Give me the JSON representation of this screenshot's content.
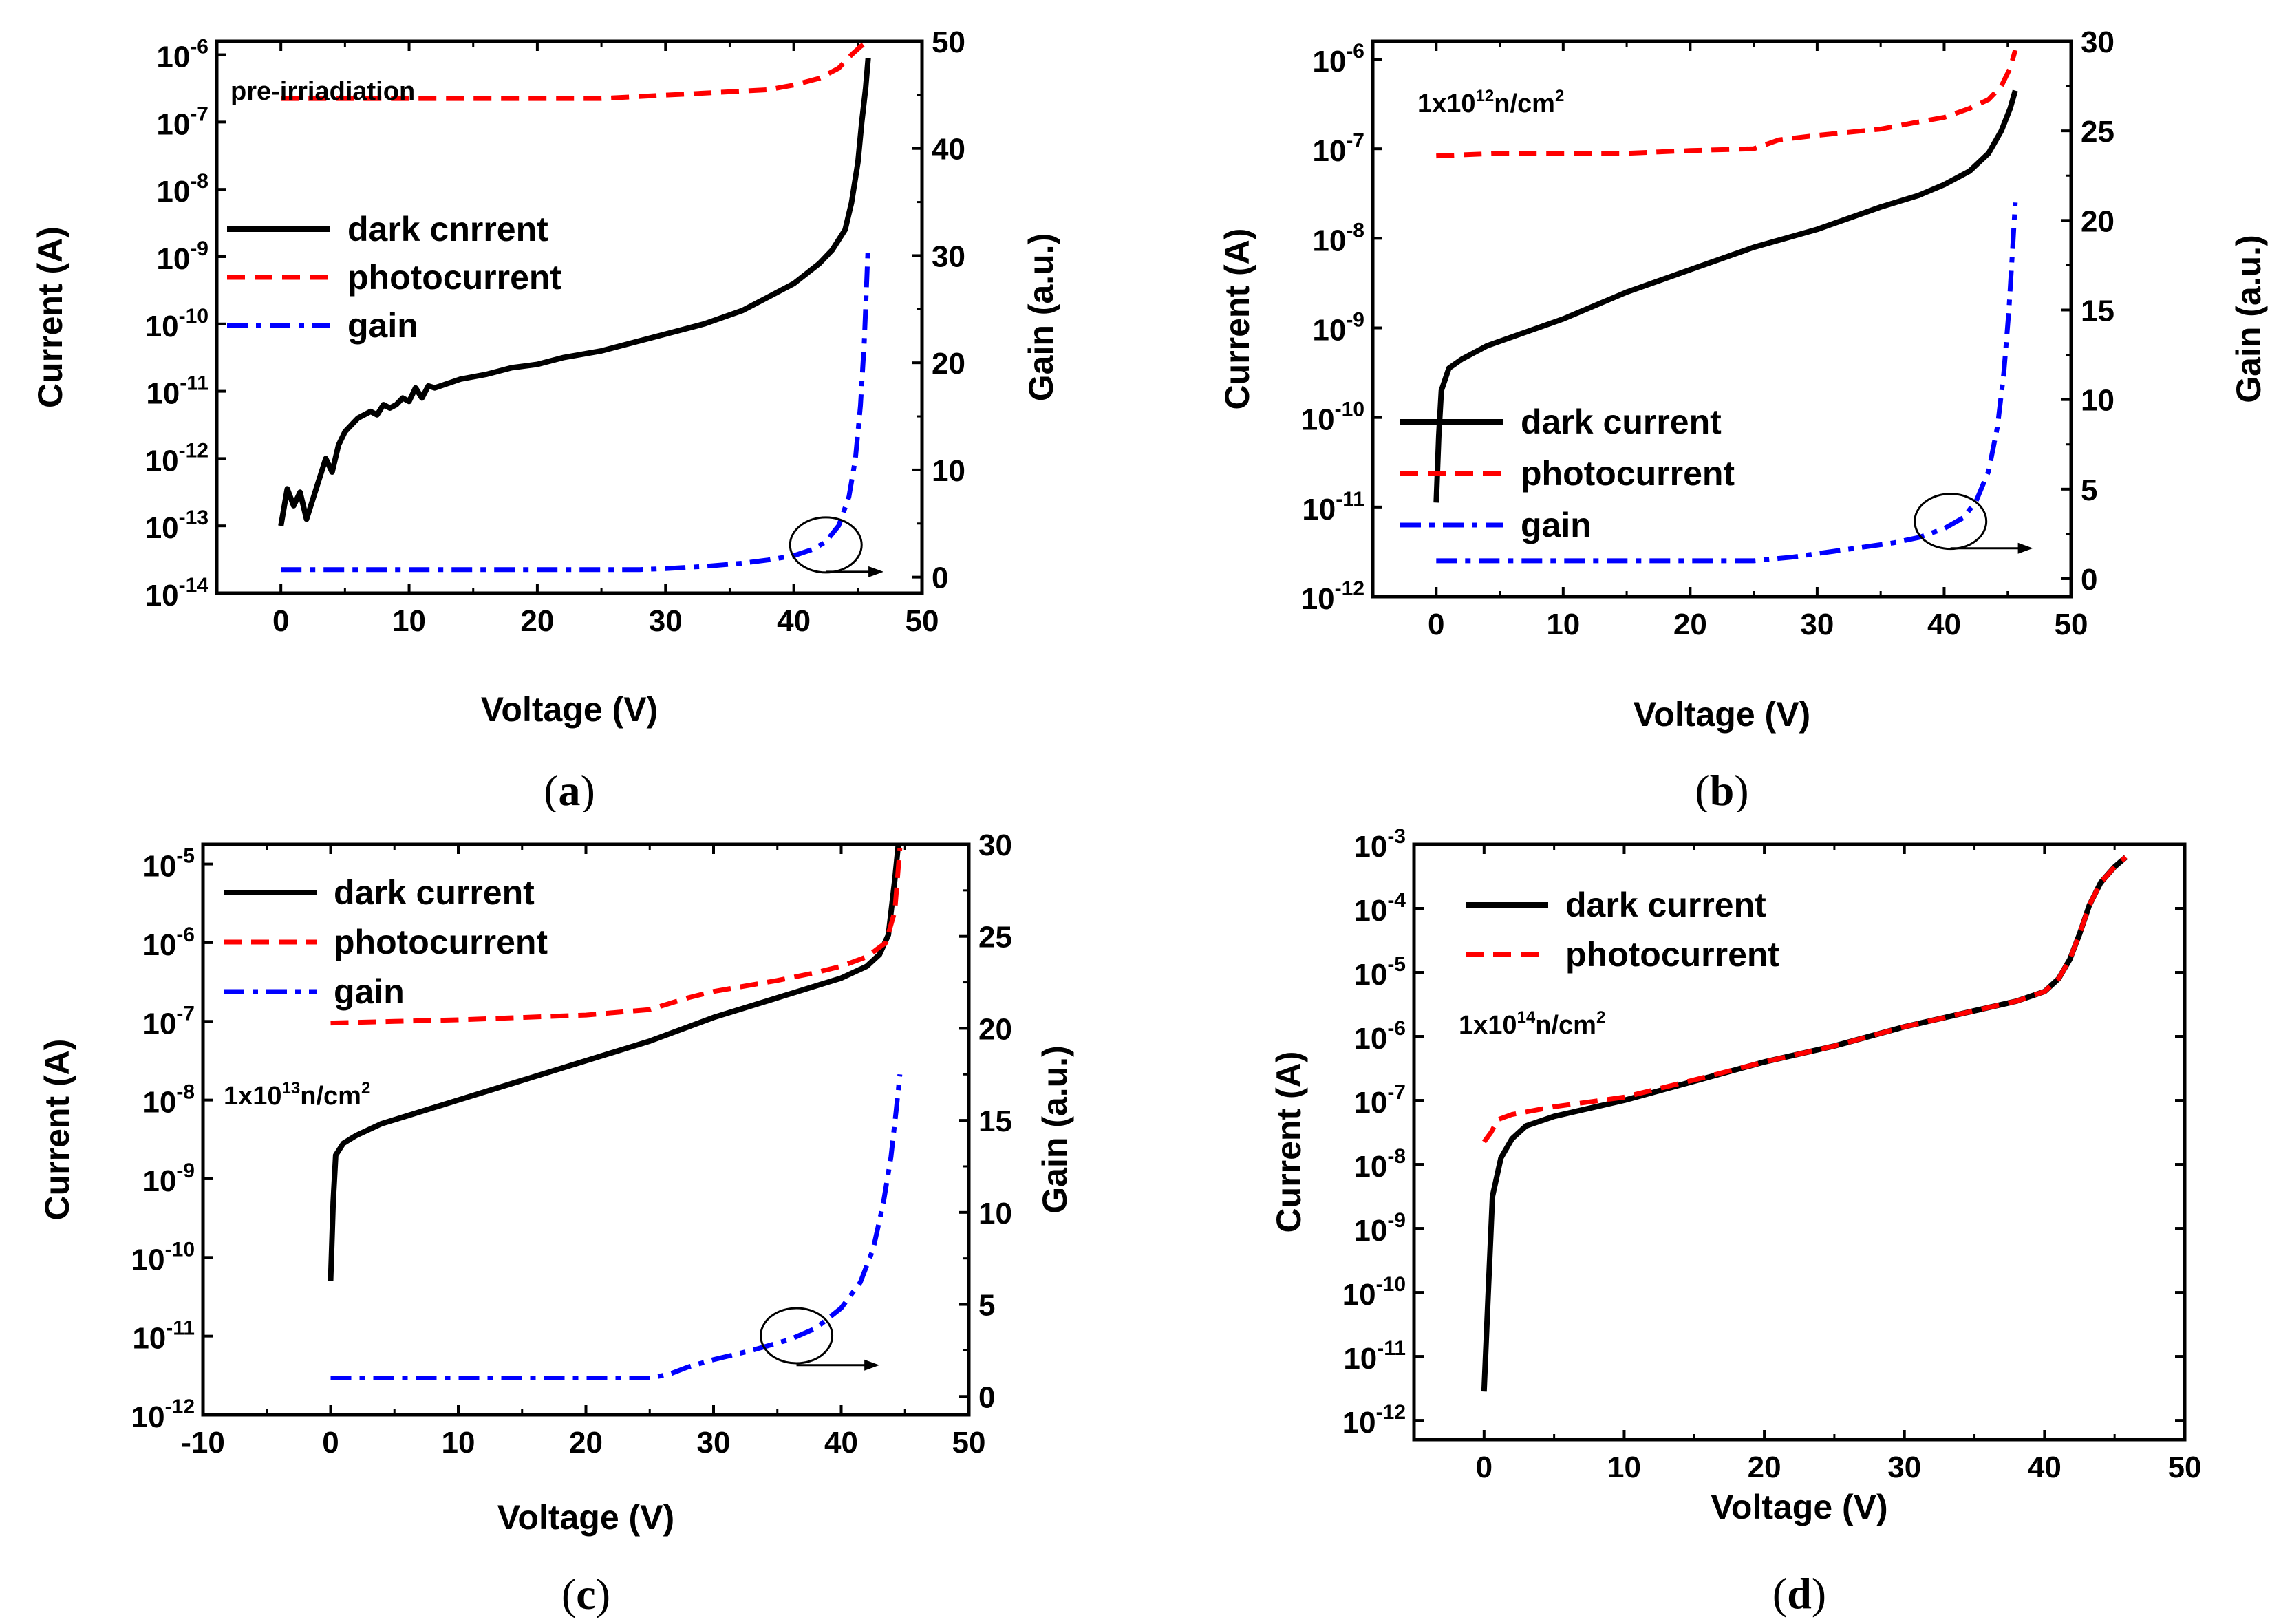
{
  "chart_data": [
    {
      "id": "a",
      "type": "line",
      "caption": "a",
      "annotation": {
        "text": "pre-irriadiation"
      },
      "xlabel": "Voltage (V)",
      "ylabel": "Current (A)",
      "y2label": "Gain (a.u.)",
      "xlim": [
        -5,
        50
      ],
      "xticks": [
        0,
        10,
        20,
        30,
        40,
        50
      ],
      "ylim_log10": [
        -14,
        -5.8
      ],
      "yticks_exp": [
        -14,
        -13,
        -12,
        -11,
        -10,
        -9,
        -8,
        -7,
        -6
      ],
      "y2lim": [
        -1.5,
        50
      ],
      "y2ticks": [
        0,
        10,
        20,
        30,
        40,
        50
      ],
      "legend": [
        {
          "series": "dark",
          "label": "dark cnrrent"
        },
        {
          "series": "photo",
          "label": "photocurrent"
        },
        {
          "series": "gain",
          "label": "gain"
        }
      ],
      "series": [
        {
          "name": "dark",
          "axis": "left",
          "color": "#000000",
          "x": [
            0,
            0.5,
            1,
            1.5,
            2,
            2.5,
            3,
            3.5,
            4,
            4.5,
            5,
            5.5,
            6,
            6.5,
            7,
            7.5,
            8,
            8.5,
            9,
            9.5,
            10,
            10.5,
            11,
            11.5,
            12,
            14,
            16,
            18,
            20,
            22,
            25,
            28,
            30,
            33,
            36,
            38,
            40,
            42,
            43,
            44,
            44.5,
            45,
            45.3,
            45.6,
            45.8
          ],
          "log10y": [
            -13.0,
            -12.45,
            -12.7,
            -12.5,
            -12.9,
            -12.6,
            -12.3,
            -12.0,
            -12.2,
            -11.8,
            -11.6,
            -11.5,
            -11.4,
            -11.35,
            -11.3,
            -11.35,
            -11.2,
            -11.25,
            -11.2,
            -11.1,
            -11.15,
            -10.95,
            -11.1,
            -10.92,
            -10.95,
            -10.82,
            -10.75,
            -10.65,
            -10.6,
            -10.5,
            -10.4,
            -10.25,
            -10.15,
            -10.0,
            -9.8,
            -9.6,
            -9.4,
            -9.1,
            -8.9,
            -8.6,
            -8.2,
            -7.6,
            -7.0,
            -6.5,
            -6.05
          ]
        },
        {
          "name": "photo",
          "axis": "left",
          "color": "#ff0000",
          "x": [
            0,
            5,
            10,
            15,
            20,
            25,
            30,
            35,
            38,
            40,
            42,
            43.5,
            44.5,
            45.2,
            45.8
          ],
          "log10y": [
            -6.65,
            -6.65,
            -6.65,
            -6.65,
            -6.65,
            -6.65,
            -6.6,
            -6.55,
            -6.52,
            -6.45,
            -6.35,
            -6.2,
            -6.0,
            -5.88,
            -5.8
          ]
        },
        {
          "name": "gain",
          "axis": "right",
          "color": "#0000ff",
          "x": [
            0,
            5,
            10,
            15,
            20,
            25,
            28,
            30,
            33,
            36,
            38,
            40,
            41.5,
            42.5,
            43.5,
            44.3,
            44.8,
            45.2,
            45.5,
            45.8
          ],
          "y": [
            0.7,
            0.7,
            0.7,
            0.7,
            0.7,
            0.7,
            0.7,
            0.8,
            1.0,
            1.3,
            1.6,
            2.0,
            2.6,
            3.3,
            4.8,
            7.5,
            11,
            16,
            22,
            31
          ]
        }
      ],
      "circle_marker": {
        "x": 42.5,
        "y2": 3.0
      },
      "arrow": {
        "x_from": 42.5,
        "x_to": 47,
        "y2": 0.5
      }
    },
    {
      "id": "b",
      "type": "line",
      "caption": "b",
      "annotation": {
        "pre": "1x10",
        "sup1": "12",
        "mid": "n/cm",
        "sup2": "2"
      },
      "xlabel": "Voltage (V)",
      "ylabel": "Current (A)",
      "y2label": "Gain (a.u.)",
      "xlim": [
        -5,
        50
      ],
      "xticks": [
        0,
        10,
        20,
        30,
        40,
        50
      ],
      "ylim_log10": [
        -12,
        -5.8
      ],
      "yticks_exp": [
        -12,
        -11,
        -10,
        -9,
        -8,
        -7,
        -6
      ],
      "y2lim": [
        -1,
        30
      ],
      "y2ticks": [
        0,
        5,
        10,
        15,
        20,
        25,
        30
      ],
      "legend": [
        {
          "series": "dark",
          "label": "dark current"
        },
        {
          "series": "photo",
          "label": "photocurrent"
        },
        {
          "series": "gain",
          "label": "gain"
        }
      ],
      "series": [
        {
          "name": "dark",
          "axis": "left",
          "color": "#000000",
          "x": [
            0,
            0.2,
            0.4,
            1,
            2,
            4,
            6,
            10,
            15,
            20,
            25,
            30,
            35,
            38,
            40,
            42,
            43.5,
            44.5,
            45.2,
            45.6
          ],
          "log10y": [
            -10.95,
            -10.2,
            -9.7,
            -9.45,
            -9.35,
            -9.2,
            -9.1,
            -8.9,
            -8.6,
            -8.35,
            -8.1,
            -7.9,
            -7.65,
            -7.52,
            -7.4,
            -7.25,
            -7.05,
            -6.8,
            -6.55,
            -6.35
          ]
        },
        {
          "name": "photo",
          "axis": "left",
          "color": "#ff0000",
          "x": [
            0,
            5,
            10,
            15,
            20,
            25,
            27,
            30,
            35,
            38,
            40,
            42,
            43.5,
            44.5,
            45.2,
            45.6
          ],
          "log10y": [
            -7.08,
            -7.05,
            -7.05,
            -7.05,
            -7.02,
            -7.0,
            -6.9,
            -6.85,
            -6.78,
            -6.7,
            -6.65,
            -6.55,
            -6.45,
            -6.3,
            -6.1,
            -5.9
          ]
        },
        {
          "name": "gain",
          "axis": "right",
          "color": "#0000ff",
          "x": [
            0,
            5,
            10,
            15,
            20,
            25,
            28,
            30,
            33,
            36,
            38,
            40,
            41.5,
            42.5,
            43.5,
            44.2,
            44.7,
            45.1,
            45.4,
            45.6
          ],
          "y": [
            1.0,
            1.0,
            1.0,
            1.0,
            1.0,
            1.0,
            1.2,
            1.4,
            1.7,
            2.0,
            2.3,
            2.8,
            3.4,
            4.3,
            6.0,
            8.5,
            11.5,
            15.0,
            18.5,
            21.0
          ]
        }
      ],
      "circle_marker": {
        "x": 40.5,
        "y2": 3.2
      },
      "arrow": {
        "x_from": 40.5,
        "x_to": 47,
        "y2": 1.7
      }
    },
    {
      "id": "c",
      "type": "line",
      "caption": "c",
      "annotation": {
        "pre": "1x10",
        "sup1": "13",
        "mid": "n/cm",
        "sup2": "2"
      },
      "xlabel": "Voltage (V)",
      "ylabel": "Current (A)",
      "y2label": "Gain (a.u.)",
      "xlim": [
        -10,
        50
      ],
      "xticks": [
        -10,
        0,
        10,
        20,
        30,
        40,
        50
      ],
      "ylim_log10": [
        -12,
        -4.75
      ],
      "yticks_exp": [
        -12,
        -11,
        -10,
        -9,
        -8,
        -7,
        -6,
        -5
      ],
      "y2lim": [
        -1,
        30
      ],
      "y2ticks": [
        0,
        5,
        10,
        15,
        20,
        25,
        30
      ],
      "legend": [
        {
          "series": "dark",
          "label": "dark current"
        },
        {
          "series": "photo",
          "label": "photocurrent"
        },
        {
          "series": "gain",
          "label": "gain"
        }
      ],
      "series": [
        {
          "name": "dark",
          "axis": "left",
          "color": "#000000",
          "x": [
            0,
            0.2,
            0.4,
            1,
            2,
            4,
            6,
            10,
            15,
            20,
            25,
            30,
            35,
            38,
            40,
            42,
            43,
            43.7,
            44.2,
            44.6
          ],
          "log10y": [
            -10.3,
            -9.3,
            -8.7,
            -8.55,
            -8.45,
            -8.3,
            -8.2,
            -8.0,
            -7.75,
            -7.5,
            -7.25,
            -6.95,
            -6.7,
            -6.55,
            -6.45,
            -6.3,
            -6.15,
            -5.9,
            -5.2,
            -4.55
          ]
        },
        {
          "name": "photo",
          "axis": "left",
          "color": "#ff0000",
          "x": [
            0,
            5,
            10,
            15,
            20,
            25,
            28,
            30,
            35,
            38,
            40,
            42,
            43.5,
            44.2,
            44.6
          ],
          "log10y": [
            -7.02,
            -7.0,
            -6.98,
            -6.95,
            -6.92,
            -6.85,
            -6.7,
            -6.62,
            -6.48,
            -6.38,
            -6.3,
            -6.18,
            -6.0,
            -5.6,
            -4.8
          ]
        },
        {
          "name": "gain",
          "axis": "right",
          "color": "#0000ff",
          "x": [
            0,
            5,
            10,
            15,
            20,
            25,
            26.5,
            28,
            30,
            33,
            36,
            38,
            40,
            41.5,
            42.5,
            43.3,
            43.9,
            44.3,
            44.6
          ],
          "y": [
            1.0,
            1.0,
            1.0,
            1.0,
            1.0,
            1.0,
            1.2,
            1.6,
            2.0,
            2.5,
            3.1,
            3.7,
            4.8,
            6.2,
            8.0,
            10.5,
            13.0,
            15.5,
            17.5
          ]
        }
      ],
      "circle_marker": {
        "x": 36.5,
        "y2": 3.3
      },
      "arrow": {
        "x_from": 36.5,
        "x_to": 43,
        "y2": 1.7
      }
    },
    {
      "id": "d",
      "type": "line",
      "caption": "d",
      "annotation": {
        "pre": "1x10",
        "sup1": "14",
        "mid": "n/cm",
        "sup2": "2"
      },
      "xlabel": "Voltage (V)",
      "ylabel": "Current (A)",
      "xlim": [
        -5,
        50
      ],
      "xticks": [
        0,
        10,
        20,
        30,
        40,
        50
      ],
      "ylim_log10": [
        -12.3,
        -3
      ],
      "yticks_exp": [
        -12,
        -11,
        -10,
        -9,
        -8,
        -7,
        -6,
        -5,
        -4,
        -3
      ],
      "legend": [
        {
          "series": "dark",
          "label": "dark current"
        },
        {
          "series": "photo",
          "label": "photocurrent"
        }
      ],
      "series": [
        {
          "name": "dark",
          "axis": "left",
          "color": "#000000",
          "x": [
            0,
            0.3,
            0.6,
            1.2,
            2,
            3,
            5,
            10,
            15,
            20,
            25,
            30,
            35,
            38,
            40,
            41,
            41.8,
            42.5,
            43.2,
            44,
            45,
            45.8
          ],
          "log10y": [
            -11.55,
            -10.0,
            -8.5,
            -7.9,
            -7.6,
            -7.4,
            -7.25,
            -7.0,
            -6.7,
            -6.4,
            -6.15,
            -5.85,
            -5.6,
            -5.45,
            -5.3,
            -5.1,
            -4.8,
            -4.4,
            -3.95,
            -3.6,
            -3.35,
            -3.2
          ]
        },
        {
          "name": "photo",
          "axis": "left",
          "color": "#ff0000",
          "x": [
            0,
            0.5,
            1,
            2,
            3,
            5,
            10,
            15,
            20,
            25,
            30,
            35,
            38,
            40,
            41,
            41.8,
            42.5,
            43.2,
            44,
            45,
            45.8
          ],
          "log10y": [
            -7.65,
            -7.5,
            -7.3,
            -7.22,
            -7.18,
            -7.1,
            -6.95,
            -6.68,
            -6.4,
            -6.15,
            -5.85,
            -5.6,
            -5.45,
            -5.3,
            -5.1,
            -4.8,
            -4.4,
            -3.95,
            -3.6,
            -3.35,
            -3.2
          ]
        }
      ]
    }
  ]
}
